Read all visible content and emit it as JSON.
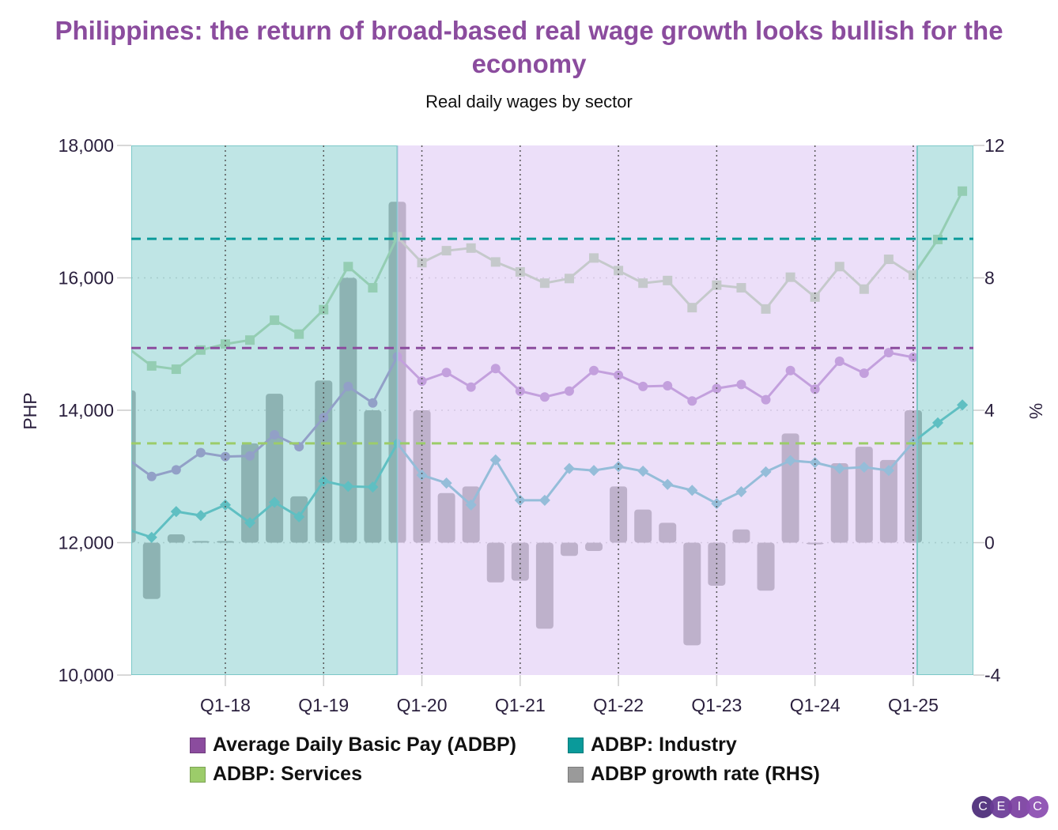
{
  "title": "Philippines: the return of broad-based real wage growth looks bullish for the economy",
  "subtitle": "Real daily wages by sector",
  "logo": "CEIC",
  "colors": {
    "adbp": "#8b4c9e",
    "industry": "#0a9a9a",
    "services": "#9ccc6a",
    "growth": "#9a9a9a",
    "shade_teal": "#7fcccc",
    "shade_purple": "#dcc4f4"
  },
  "chart_data": {
    "type": "line",
    "title": "Real daily wages by sector",
    "ylabel": "PHP",
    "y2label": "%",
    "ylim": [
      10000,
      18000
    ],
    "y2lim": [
      -4,
      12
    ],
    "yticks": [
      "10,000",
      "12,000",
      "14,000",
      "16,000",
      "18,000"
    ],
    "y2ticks": [
      "-4",
      "0",
      "4",
      "8",
      "12"
    ],
    "xticks": [
      "Q1-18",
      "Q1-19",
      "Q1-20",
      "Q1-21",
      "Q1-22",
      "Q1-23",
      "Q1-24",
      "Q1-25"
    ],
    "x": [
      "Q1-17",
      "Q2-17",
      "Q3-17",
      "Q4-17",
      "Q1-18",
      "Q2-18",
      "Q3-18",
      "Q4-18",
      "Q1-19",
      "Q2-19",
      "Q3-19",
      "Q4-19",
      "Q1-20",
      "Q2-20",
      "Q3-20",
      "Q4-20",
      "Q1-21",
      "Q2-21",
      "Q3-21",
      "Q4-21",
      "Q1-22",
      "Q2-22",
      "Q3-22",
      "Q4-22",
      "Q1-23",
      "Q2-23",
      "Q3-23",
      "Q4-23",
      "Q1-24",
      "Q2-24",
      "Q3-24",
      "Q4-24",
      "Q1-25",
      "Q2-25",
      "Q3-25"
    ],
    "grid": true,
    "legend_position": "bottom",
    "series": [
      {
        "name": "Average Daily Basic Pay (ADBP)",
        "type": "line",
        "marker": "circle",
        "axis": "left",
        "color": "#8b4c9e",
        "values": [
          13270,
          13000,
          13100,
          13360,
          13300,
          13310,
          13630,
          13450,
          13890,
          14360,
          14110,
          14810,
          14440,
          14570,
          14350,
          14630,
          14290,
          14200,
          14290,
          14600,
          14530,
          14360,
          14370,
          14140,
          14330,
          14390,
          14160,
          14600,
          14320,
          14740,
          14560,
          14870,
          14800,
          null,
          null
        ]
      },
      {
        "name": "ADBP: Industry",
        "type": "line",
        "marker": "diamond",
        "axis": "left",
        "color": "#0a9a9a",
        "values": [
          12200,
          12080,
          12470,
          12410,
          12570,
          12300,
          12610,
          12390,
          12930,
          12850,
          12840,
          13500,
          13020,
          12900,
          12570,
          13250,
          12640,
          12640,
          13120,
          13090,
          13150,
          13080,
          12880,
          12790,
          12590,
          12770,
          13070,
          13240,
          13210,
          13120,
          13140,
          13090,
          13520,
          13810,
          14080
        ]
      },
      {
        "name": "ADBP: Services",
        "type": "line",
        "marker": "square",
        "axis": "left",
        "color": "#9ccc6a",
        "values": [
          14950,
          14670,
          14620,
          14910,
          15000,
          15060,
          15360,
          15150,
          15520,
          16170,
          15850,
          16620,
          16230,
          16410,
          16450,
          16240,
          16090,
          15920,
          15990,
          16300,
          16110,
          15920,
          15960,
          15550,
          15890,
          15850,
          15530,
          16010,
          15710,
          16170,
          15830,
          16280,
          16040,
          16580,
          17310
        ]
      },
      {
        "name": "ADBP growth rate (RHS)",
        "type": "bar",
        "axis": "right",
        "color": "#9a9a9a",
        "values": [
          4.6,
          -1.7,
          0.25,
          0.05,
          0.05,
          3.0,
          4.5,
          1.4,
          4.9,
          8.0,
          4.0,
          10.3,
          4.0,
          1.5,
          1.7,
          -1.2,
          -1.15,
          -2.6,
          -0.4,
          -0.25,
          1.7,
          1.0,
          0.6,
          -3.1,
          -1.3,
          0.4,
          -1.45,
          3.3,
          -0.05,
          2.4,
          2.9,
          2.5,
          4.0,
          null,
          null
        ]
      }
    ],
    "reference_lines": [
      {
        "series": "ADBP: Industry",
        "value": 16590,
        "style": "dashed",
        "color": "#0a9a9a"
      },
      {
        "series": "Average Daily Basic Pay (ADBP)",
        "value": 14940,
        "style": "dashed",
        "color": "#8b4c9e"
      },
      {
        "series": "ADBP: Services",
        "value": 13500,
        "style": "dashed",
        "color": "#9ccc6a"
      }
    ],
    "shaded_periods": [
      {
        "from": "Q1-17",
        "to": "Q4-19",
        "color": "#7fcccc"
      },
      {
        "from": "Q4-19",
        "to": "Q1-25",
        "color": "#dcc4f4"
      },
      {
        "from": "Q1-25",
        "to": "Q3-25",
        "color": "#7fcccc"
      }
    ]
  }
}
